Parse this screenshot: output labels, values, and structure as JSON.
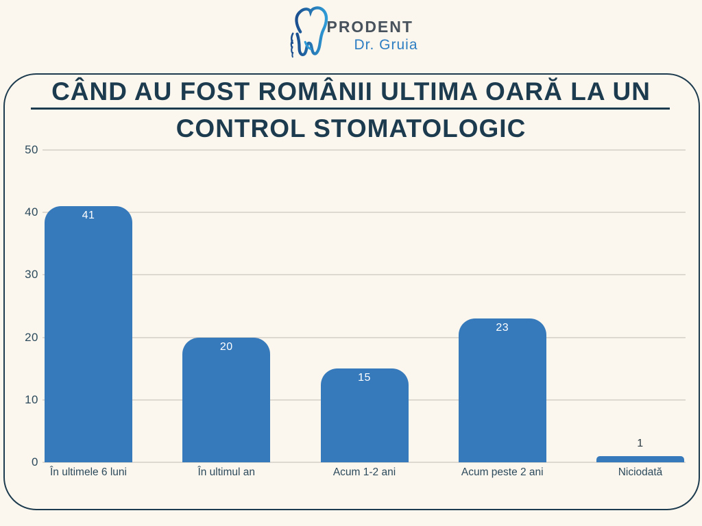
{
  "logo": {
    "icon": "tooth-icon",
    "brand": "PRODENT",
    "doctor": "Dr. Gruia"
  },
  "title": {
    "line1": "CÂND AU FOST ROMÂNII ULTIMA OARĂ LA UN",
    "line2": "CONTROL STOMATOLOGIC"
  },
  "chart_data": {
    "type": "bar",
    "title": "CÂND AU FOST ROMÂNII ULTIMA OARĂ LA UN CONTROL STOMATOLOGIC",
    "categories": [
      "În ultimele 6 luni",
      "În ultimul an",
      "Acum 1-2 ani",
      "Acum peste 2 ani",
      "Niciodată"
    ],
    "values": [
      41,
      20,
      15,
      23,
      1
    ],
    "xlabel": "",
    "ylabel": "",
    "ylim": [
      0,
      50
    ],
    "yticks": [
      0,
      10,
      20,
      30,
      40,
      50
    ],
    "grid": true,
    "legend": false
  },
  "colors": {
    "background": "#FBF7EE",
    "card_border": "#1D3B4E",
    "title": "#1D3B4E",
    "bar": "#377ABB",
    "gridline": "#DDD9D0",
    "axis_label": "#2C4A5C",
    "value_inside": "#FFFFFF",
    "value_outside": "#2B3A42",
    "brand_text": "#47525C",
    "accent_blue": "#2D7DC2",
    "tooth_gradient_start": "#1B4F8F",
    "tooth_gradient_end": "#2F9BD6"
  }
}
